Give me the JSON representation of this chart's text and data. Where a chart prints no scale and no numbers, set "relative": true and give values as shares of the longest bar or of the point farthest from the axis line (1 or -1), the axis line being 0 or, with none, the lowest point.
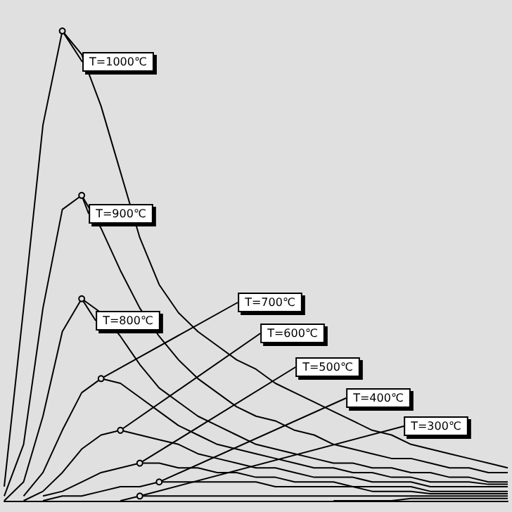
{
  "chart_data": {
    "type": "line",
    "relative": true,
    "marker": "none",
    "legend": false,
    "categories": [
      null,
      null,
      null,
      null,
      null,
      null,
      null,
      null,
      null,
      null,
      null,
      null,
      null,
      null,
      null,
      null,
      null,
      null,
      null,
      null,
      null,
      null,
      null,
      null,
      null,
      null,
      null
    ],
    "series": [
      {
        "name": "T=1000℃",
        "color": "#000000",
        "values": [
          0.03,
          0.41,
          0.8,
          1,
          0.95,
          0.84,
          0.7,
          0.56,
          0.46,
          0.4,
          0.36,
          0.33,
          0.3,
          0.28,
          0.25,
          0.23,
          0.21,
          0.19,
          0.17,
          0.15,
          0.14,
          0.12,
          0.11,
          0.1,
          0.09,
          0.08,
          0.07
        ]
      },
      {
        "name": "T=900℃",
        "color": "#000000",
        "values": [
          0.01,
          0.12,
          0.41,
          0.62,
          0.65,
          0.58,
          0.49,
          0.41,
          0.35,
          0.3,
          0.26,
          0.23,
          0.2,
          0.18,
          0.17,
          0.15,
          0.14,
          0.12,
          0.11,
          0.1,
          0.09,
          0.09,
          0.08,
          0.07,
          0.07,
          0.06,
          0.06
        ]
      },
      {
        "name": "T=800℃",
        "color": "#000000",
        "values": [
          0,
          0.04,
          0.18,
          0.36,
          0.43,
          0.4,
          0.35,
          0.29,
          0.24,
          0.21,
          0.18,
          0.16,
          0.14,
          0.12,
          0.11,
          0.1,
          0.09,
          0.08,
          0.08,
          0.07,
          0.07,
          0.06,
          0.06,
          0.05,
          0.05,
          0.04,
          0.04
        ]
      },
      {
        "name": "T=700℃",
        "color": "#000000",
        "values": [
          null,
          0.01,
          0.06,
          0.15,
          0.23,
          0.26,
          0.25,
          0.22,
          0.19,
          0.16,
          0.14,
          0.12,
          0.11,
          0.1,
          0.09,
          0.08,
          0.07,
          0.07,
          0.06,
          0.06,
          0.05,
          0.05,
          0.04,
          0.04,
          0.04,
          0.035,
          0.035
        ]
      },
      {
        "name": "T=600℃",
        "color": "#000000",
        "values": [
          null,
          0,
          0.02,
          0.06,
          0.11,
          0.14,
          0.15,
          0.14,
          0.13,
          0.12,
          0.1,
          0.09,
          0.08,
          0.07,
          0.07,
          0.06,
          0.05,
          0.05,
          0.05,
          0.04,
          0.04,
          0.04,
          0.03,
          0.03,
          0.03,
          0.03,
          0.03
        ]
      },
      {
        "name": "T=500℃",
        "color": "#000000",
        "values": [
          null,
          null,
          0.01,
          0.02,
          0.04,
          0.06,
          0.07,
          0.08,
          0.08,
          0.07,
          0.07,
          0.06,
          0.06,
          0.05,
          0.05,
          0.04,
          0.04,
          0.04,
          0.03,
          0.03,
          0.03,
          0.03,
          0.02,
          0.02,
          0.02,
          0.02,
          0.02
        ]
      },
      {
        "name": "T=400℃",
        "color": "#000000",
        "values": [
          null,
          null,
          0,
          0.01,
          0.01,
          0.02,
          0.03,
          0.03,
          0.04,
          0.04,
          0.04,
          0.04,
          0.04,
          0.04,
          0.03,
          0.03,
          0.03,
          0.03,
          0.03,
          0.02,
          0.02,
          0.02,
          0.015,
          0.015,
          0.015,
          0.015,
          0.015
        ]
      },
      {
        "name": "T=300℃",
        "color": "#000000",
        "values": [
          null,
          null,
          null,
          null,
          null,
          null,
          0,
          0.01,
          0.01,
          0.01,
          0.01,
          0.01,
          0.01,
          0.01,
          0.01,
          0.01,
          0.01,
          0.01,
          0.01,
          0.01,
          0.01,
          0.01,
          0.01,
          0.01,
          0.01,
          0.01,
          0.01
        ]
      },
      {
        "color": "#000000",
        "values": [
          null,
          null,
          null,
          null,
          null,
          null,
          null,
          null,
          null,
          null,
          null,
          null,
          null,
          null,
          null,
          null,
          null,
          0,
          0,
          0,
          0,
          0.005,
          0.005,
          0.005,
          0.005,
          0.005,
          0.005
        ]
      }
    ]
  }
}
